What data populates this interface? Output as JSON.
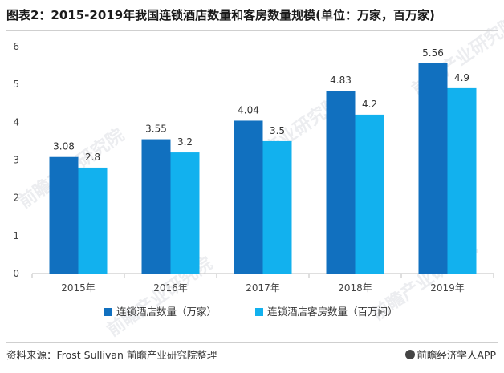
{
  "title": "图表2：2015-2019年我国连锁酒店数量和客房数量规模(单位：万家，百万家)",
  "source": "资料来源：Frost Sullivan 前瞻产业研究院整理",
  "brand": "前瞻经济学人APP",
  "watermark": "前瞻产业研究院",
  "colors": {
    "series1": "#1170bf",
    "series2": "#12b1ee",
    "axis": "#bfbfbf"
  },
  "chart_data": {
    "type": "bar",
    "categories": [
      "2015年",
      "2016年",
      "2017年",
      "2018年",
      "2019年"
    ],
    "series": [
      {
        "name": "连锁酒店数量（万家）",
        "values": [
          3.08,
          3.55,
          4.04,
          4.83,
          5.56
        ],
        "labels": [
          "3.08",
          "3.55",
          "4.04",
          "4.83",
          "5.56"
        ]
      },
      {
        "name": "连锁酒店客房数量（百万间）",
        "values": [
          2.8,
          3.2,
          3.5,
          4.2,
          4.9
        ],
        "labels": [
          "2.8",
          "3.2",
          "3.5",
          "4.2",
          "4.9"
        ]
      }
    ],
    "ylim": [
      0,
      6
    ],
    "yticks": [
      "0",
      "1",
      "2",
      "3",
      "4",
      "5",
      "6"
    ],
    "grid": false,
    "legend": "bottom"
  }
}
